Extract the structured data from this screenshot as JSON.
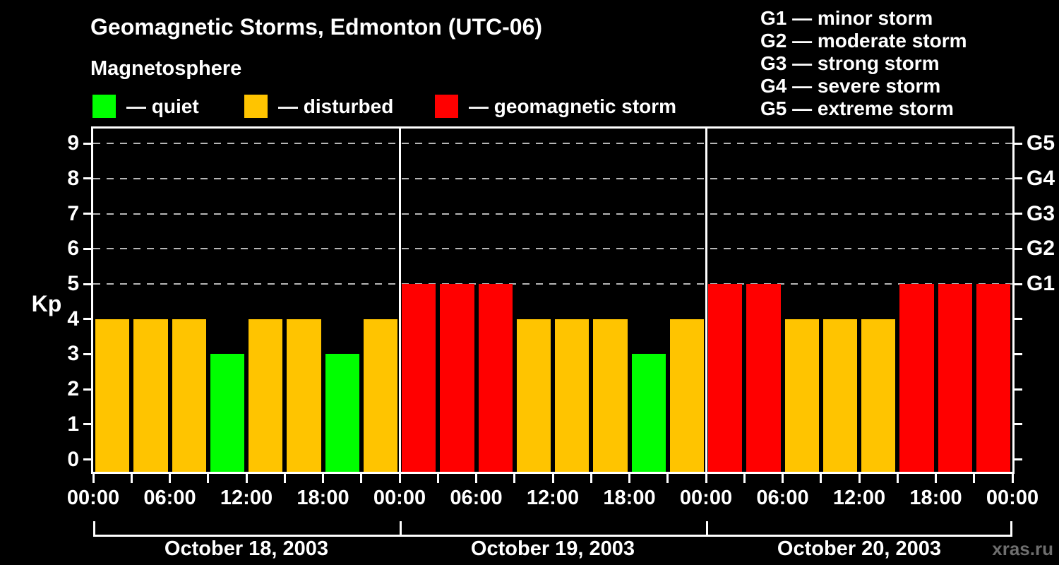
{
  "header": {
    "title": "Geomagnetic Storms, Edmonton (UTC-06)",
    "subtitle": "Magnetosphere"
  },
  "legend": {
    "items": [
      {
        "label": "— quiet",
        "state": "quiet"
      },
      {
        "label": "— disturbed",
        "state": "disturbed"
      },
      {
        "label": "— geomagnetic storm",
        "state": "storm"
      }
    ]
  },
  "g_legend": {
    "lines": [
      "G1 — minor storm",
      "G2 — moderate storm",
      "G3 — strong storm",
      "G4 — severe storm",
      "G5 — extreme storm"
    ]
  },
  "watermark": "xras.ru",
  "chart_data": {
    "type": "bar",
    "title": "Geomagnetic Storms, Edmonton (UTC-06)",
    "ylabel": "Kp",
    "ylim": [
      0,
      9
    ],
    "grid_levels": [
      5,
      6,
      7,
      8,
      9
    ],
    "interval_hours": 3,
    "days": [
      {
        "date": "October 18, 2003",
        "values": [
          4,
          4,
          4,
          3,
          4,
          4,
          3,
          4
        ],
        "states": [
          "disturbed",
          "disturbed",
          "disturbed",
          "quiet",
          "disturbed",
          "disturbed",
          "quiet",
          "disturbed"
        ]
      },
      {
        "date": "October 19, 2003",
        "values": [
          5,
          5,
          5,
          4,
          4,
          4,
          3,
          4
        ],
        "states": [
          "storm",
          "storm",
          "storm",
          "disturbed",
          "disturbed",
          "disturbed",
          "quiet",
          "disturbed"
        ]
      },
      {
        "date": "October 20, 2003",
        "values": [
          5,
          5,
          4,
          4,
          4,
          5,
          5,
          5
        ],
        "states": [
          "storm",
          "storm",
          "disturbed",
          "disturbed",
          "disturbed",
          "storm",
          "storm",
          "storm"
        ]
      }
    ],
    "kp_ticks": [
      "0",
      "1",
      "2",
      "3",
      "4",
      "5",
      "6",
      "7",
      "8",
      "9"
    ],
    "g_scale_labels": [
      "G5",
      "G4",
      "G3",
      "G2",
      "G1"
    ],
    "time_labels": [
      "00:00",
      "06:00",
      "12:00",
      "18:00",
      "00:00",
      "06:00",
      "12:00",
      "18:00",
      "00:00",
      "06:00",
      "12:00",
      "18:00",
      "00:00"
    ],
    "state_colors": {
      "quiet": "#00ff00",
      "disturbed": "#ffc400",
      "storm": "#ff0000"
    },
    "legend_position": "top-left",
    "grid": "dashed-horizontal-5-to-9"
  }
}
